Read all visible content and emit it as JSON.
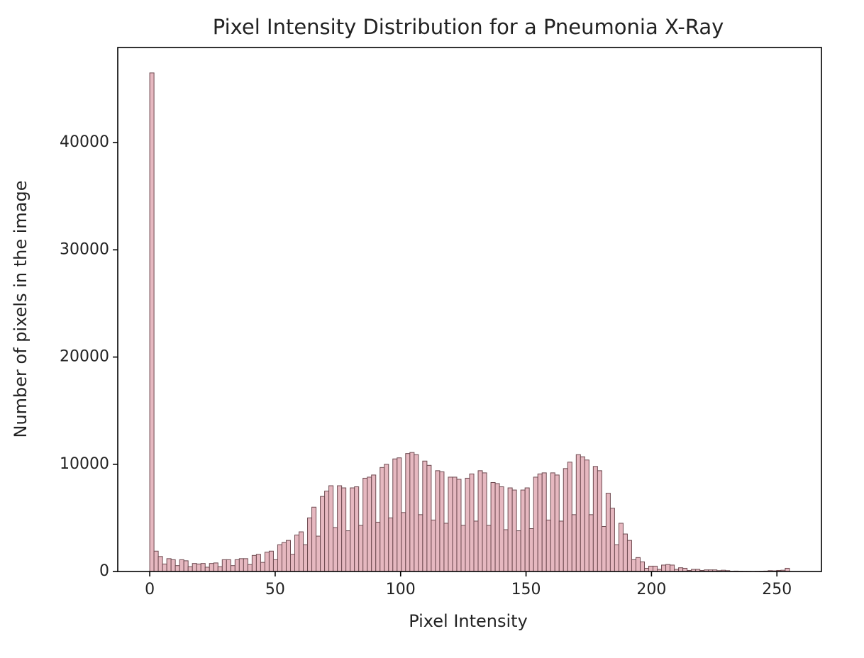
{
  "chart_data": {
    "type": "histogram",
    "title": "Pixel Intensity Distribution for a Pneumonia X-Ray",
    "x_label": "Pixel Intensity",
    "y_label": "Number of pixels in the image",
    "color": "#e6b8c0",
    "edgecolor": "#6e4a50",
    "xlim": [
      -12.75,
      267.75
    ],
    "xticks": [
      0,
      50,
      100,
      150,
      200,
      250
    ],
    "ylim": [
      0,
      48870
    ],
    "yticks": [
      0,
      10000,
      20000,
      30000,
      40000
    ],
    "bins": [
      0,
      1.7,
      3.4,
      5.1,
      6.8,
      8.5,
      10.2,
      11.9,
      13.6,
      15.3,
      17,
      18.7,
      20.4,
      22.1,
      23.8,
      25.5,
      27.2,
      28.9,
      30.6,
      32.3,
      34,
      35.7,
      37.4,
      39.1,
      40.8,
      42.5,
      44.2,
      45.9,
      47.6,
      49.3,
      51,
      52.7,
      54.4,
      56.1,
      57.8,
      59.5,
      61.2,
      62.9,
      64.6,
      66.3,
      68,
      69.7,
      71.4,
      73.1,
      74.8,
      76.5,
      78.2,
      79.9,
      81.6,
      83.3,
      85,
      86.7,
      88.4,
      90.1,
      91.8,
      93.5,
      95.2,
      96.9,
      98.6,
      100.3,
      102,
      103.7,
      105.4,
      107.1,
      108.8,
      110.5,
      112.2,
      113.9,
      115.6,
      117.3,
      119,
      120.7,
      122.4,
      124.1,
      125.8,
      127.5,
      129.2,
      130.9,
      132.6,
      134.3,
      136,
      137.7,
      139.4,
      141.1,
      142.8,
      144.5,
      146.2,
      147.9,
      149.6,
      151.3,
      153,
      154.7,
      156.4,
      158.1,
      159.8,
      161.5,
      163.2,
      164.9,
      166.6,
      168.3,
      170,
      171.7,
      173.4,
      175.1,
      176.8,
      178.5,
      180.2,
      181.9,
      183.6,
      185.3,
      187,
      188.7,
      190.4,
      192.1,
      193.8,
      195.5,
      197.2,
      198.9,
      200.6,
      202.3,
      204,
      205.7,
      207.4,
      209.1,
      210.8,
      212.5,
      214.2,
      215.9,
      217.6,
      219.3,
      221,
      222.7,
      224.4,
      226.1,
      227.8,
      229.5,
      231.2,
      232.9,
      234.6,
      236.3,
      238,
      239.7,
      241.4,
      243.1,
      244.8,
      246.5,
      248.2,
      249.9,
      251.6,
      253.3,
      255
    ],
    "values": [
      46500,
      1900,
      1400,
      700,
      1200,
      1100,
      550,
      1100,
      1000,
      450,
      750,
      700,
      750,
      400,
      750,
      800,
      450,
      1100,
      1100,
      550,
      1100,
      1200,
      1200,
      650,
      1500,
      1600,
      850,
      1800,
      1900,
      1100,
      2500,
      2700,
      2900,
      1600,
      3400,
      3700,
      2500,
      5000,
      6000,
      3300,
      7000,
      7500,
      8000,
      4100,
      8000,
      7800,
      3800,
      7800,
      7900,
      4300,
      8700,
      8800,
      9000,
      4600,
      9700,
      10000,
      5000,
      10500,
      10600,
      5500,
      11000,
      11100,
      10900,
      5300,
      10300,
      9900,
      4800,
      9400,
      9300,
      4500,
      8800,
      8800,
      8600,
      4300,
      8700,
      9100,
      4700,
      9400,
      9200,
      4300,
      8300,
      8200,
      7900,
      3900,
      7800,
      7600,
      3800,
      7600,
      7800,
      4000,
      8800,
      9100,
      9200,
      4800,
      9200,
      9000,
      4700,
      9600,
      10200,
      5300,
      10900,
      10700,
      10400,
      5300,
      9800,
      9400,
      4200,
      7300,
      5900,
      2500,
      4500,
      3500,
      2900,
      1100,
      1300,
      900,
      300,
      500,
      500,
      200,
      600,
      650,
      600,
      200,
      350,
      300,
      100,
      200,
      200,
      100,
      150,
      150,
      150,
      80,
      120,
      80,
      30,
      40,
      30,
      20,
      20,
      10,
      20,
      30,
      40,
      80,
      60,
      100,
      120,
      300
    ]
  }
}
